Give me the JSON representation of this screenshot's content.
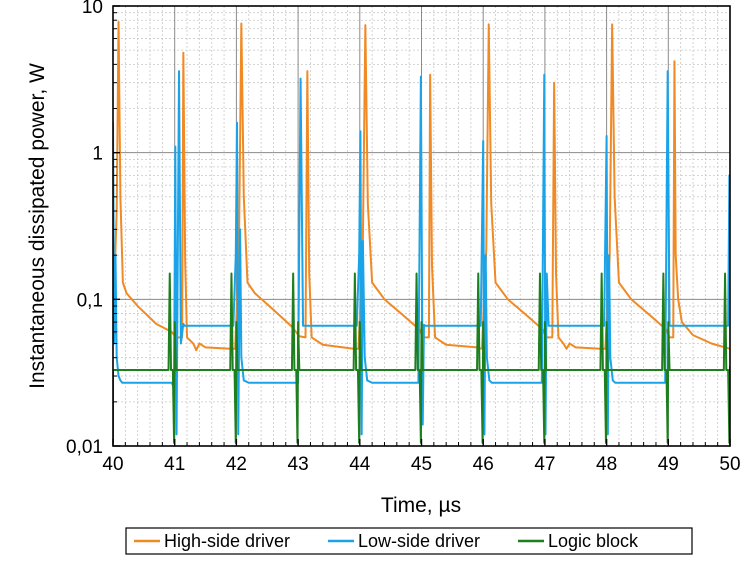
{
  "chart_data": {
    "type": "line",
    "title": "",
    "xlabel": "Time, µs",
    "ylabel": "Instantaneous dissipated power, W",
    "xlim": [
      40,
      50
    ],
    "ylim": [
      0.01,
      10
    ],
    "yscale": "log",
    "grid": true,
    "x_ticks": [
      40,
      41,
      42,
      43,
      44,
      45,
      46,
      47,
      48,
      49,
      50
    ],
    "x_tick_labels": [
      "40",
      "41",
      "42",
      "43",
      "44",
      "45",
      "46",
      "47",
      "48",
      "49",
      "50"
    ],
    "y_ticks": [
      0.01,
      0.1,
      1,
      10
    ],
    "y_tick_labels": [
      "0,01",
      "0,1",
      "1",
      "10"
    ],
    "legend_position": "bottom",
    "series": [
      {
        "name": "High-side driver",
        "color": "#F08A24",
        "x": [
          40.0,
          40.06,
          40.09,
          40.12,
          40.16,
          40.22,
          40.4,
          40.7,
          40.95,
          41.02,
          41.12,
          41.14,
          41.17,
          41.2,
          41.3,
          41.35,
          41.4,
          41.5,
          41.9,
          41.98,
          42.04,
          42.08,
          42.12,
          42.18,
          42.3,
          42.6,
          42.9,
          43.02,
          43.12,
          43.15,
          43.18,
          43.22,
          43.4,
          43.9,
          43.98,
          44.05,
          44.09,
          44.13,
          44.2,
          44.4,
          44.7,
          44.97,
          45.02,
          45.12,
          45.14,
          45.17,
          45.22,
          45.4,
          45.9,
          45.98,
          46.05,
          46.09,
          46.13,
          46.2,
          46.4,
          46.7,
          46.97,
          47.02,
          47.12,
          47.15,
          47.18,
          47.22,
          47.3,
          47.35,
          47.4,
          47.5,
          47.9,
          47.98,
          48.05,
          48.09,
          48.13,
          48.2,
          48.4,
          48.7,
          48.97,
          49.02,
          49.08,
          49.1,
          49.12,
          49.16,
          49.22,
          49.4,
          49.7,
          50.0
        ],
        "y": [
          0.065,
          0.4,
          7.8,
          0.5,
          0.13,
          0.11,
          0.09,
          0.068,
          0.06,
          0.055,
          0.055,
          4.8,
          0.18,
          0.055,
          0.05,
          0.045,
          0.05,
          0.047,
          0.046,
          0.046,
          0.2,
          7.6,
          0.5,
          0.13,
          0.11,
          0.085,
          0.065,
          0.056,
          0.055,
          3.6,
          0.15,
          0.055,
          0.049,
          0.046,
          0.046,
          0.25,
          7.4,
          0.45,
          0.13,
          0.1,
          0.078,
          0.062,
          0.055,
          0.055,
          3.4,
          0.17,
          0.055,
          0.049,
          0.047,
          0.046,
          0.22,
          7.5,
          0.45,
          0.13,
          0.1,
          0.078,
          0.062,
          0.055,
          0.055,
          3.0,
          0.15,
          0.055,
          0.05,
          0.046,
          0.05,
          0.047,
          0.046,
          0.046,
          0.2,
          7.5,
          0.5,
          0.13,
          0.1,
          0.078,
          0.062,
          0.055,
          0.055,
          4.2,
          0.2,
          0.1,
          0.07,
          0.057,
          0.05,
          0.046
        ]
      },
      {
        "name": "Low-side driver",
        "color": "#1AA3E8",
        "x": [
          39.98,
          40.0,
          40.02,
          40.04,
          40.06,
          40.09,
          40.12,
          40.15,
          40.2,
          40.95,
          40.99,
          41.01,
          41.03,
          41.05,
          41.07,
          41.1,
          41.14,
          41.16,
          41.2,
          41.25,
          41.95,
          41.99,
          42.01,
          42.03,
          42.06,
          42.08,
          42.12,
          42.2,
          42.3,
          43.0,
          43.04,
          43.08,
          43.1,
          43.12,
          43.16,
          43.2,
          43.95,
          43.99,
          44.01,
          44.03,
          44.05,
          44.08,
          44.12,
          44.2,
          44.3,
          44.95,
          44.99,
          45.02,
          45.04,
          45.06,
          45.08,
          45.12,
          45.2,
          45.96,
          46.0,
          46.02,
          46.04,
          46.06,
          46.1,
          46.14,
          46.2,
          46.3,
          46.95,
          46.99,
          47.01,
          47.03,
          47.06,
          47.08,
          47.12,
          47.2,
          47.96,
          48.0,
          48.02,
          48.04,
          48.06,
          48.1,
          48.14,
          48.2,
          48.3,
          48.95,
          48.99,
          49.02,
          49.04,
          49.06,
          49.08,
          49.12,
          49.2,
          49.97,
          49.99,
          50.0
        ],
        "y": [
          0.3,
          1.6,
          0.05,
          0.2,
          0.04,
          0.03,
          0.028,
          0.027,
          0.027,
          0.027,
          0.025,
          1.1,
          0.012,
          0.2,
          3.6,
          0.05,
          0.068,
          0.066,
          0.066,
          0.066,
          0.066,
          0.2,
          1.6,
          0.012,
          0.3,
          0.04,
          0.028,
          0.027,
          0.027,
          0.027,
          3.2,
          0.066,
          0.066,
          0.066,
          0.066,
          0.066,
          0.066,
          0.2,
          1.4,
          0.012,
          0.25,
          0.04,
          0.028,
          0.027,
          0.027,
          0.027,
          3.3,
          0.014,
          0.067,
          0.066,
          0.066,
          0.066,
          0.066,
          0.066,
          1.2,
          0.012,
          0.2,
          0.04,
          0.028,
          0.027,
          0.027,
          0.027,
          0.027,
          3.4,
          0.012,
          0.15,
          0.066,
          0.066,
          0.066,
          0.066,
          0.066,
          1.3,
          0.012,
          0.2,
          0.04,
          0.028,
          0.027,
          0.027,
          0.027,
          0.027,
          3.6,
          0.066,
          0.066,
          0.066,
          0.066,
          0.066,
          0.066,
          0.066,
          0.7,
          0.5
        ]
      },
      {
        "name": "Logic block",
        "color": "#1E7F1E",
        "x": [
          40.0,
          40.0,
          40.0,
          40.15,
          40.9,
          40.92,
          40.94,
          40.97,
          40.99,
          41.0,
          41.02,
          41.04,
          41.1,
          41.9,
          41.92,
          41.94,
          41.97,
          41.99,
          42.0,
          42.02,
          42.04,
          42.1,
          42.9,
          42.92,
          42.94,
          42.97,
          42.99,
          43.0,
          43.02,
          43.04,
          43.1,
          43.9,
          43.92,
          43.94,
          43.97,
          43.99,
          44.0,
          44.02,
          44.04,
          44.1,
          44.9,
          44.92,
          44.94,
          44.97,
          44.99,
          45.0,
          45.02,
          45.04,
          45.1,
          45.9,
          45.92,
          45.94,
          45.97,
          45.99,
          46.0,
          46.02,
          46.04,
          46.1,
          46.9,
          46.92,
          46.94,
          46.97,
          46.99,
          47.0,
          47.02,
          47.04,
          47.1,
          47.9,
          47.92,
          47.94,
          47.97,
          47.99,
          48.0,
          48.02,
          48.04,
          48.1,
          48.9,
          48.92,
          48.94,
          48.97,
          48.99,
          49.0,
          49.02,
          49.04,
          49.1,
          49.9,
          49.92,
          49.94,
          49.97,
          49.99,
          50.0
        ],
        "y": [
          0.0105,
          0.0105,
          0.033,
          0.033,
          0.033,
          0.15,
          0.033,
          0.033,
          0.0105,
          0.07,
          0.033,
          0.033,
          0.033,
          0.033,
          0.15,
          0.033,
          0.033,
          0.0105,
          0.07,
          0.033,
          0.033,
          0.033,
          0.033,
          0.15,
          0.033,
          0.033,
          0.0105,
          0.07,
          0.033,
          0.033,
          0.033,
          0.033,
          0.15,
          0.033,
          0.033,
          0.0105,
          0.07,
          0.033,
          0.033,
          0.033,
          0.033,
          0.15,
          0.033,
          0.033,
          0.0105,
          0.07,
          0.033,
          0.033,
          0.033,
          0.033,
          0.15,
          0.033,
          0.033,
          0.0105,
          0.07,
          0.033,
          0.033,
          0.033,
          0.033,
          0.15,
          0.033,
          0.033,
          0.0105,
          0.07,
          0.033,
          0.033,
          0.033,
          0.033,
          0.15,
          0.033,
          0.033,
          0.0105,
          0.07,
          0.033,
          0.033,
          0.033,
          0.033,
          0.15,
          0.033,
          0.033,
          0.0105,
          0.07,
          0.033,
          0.033,
          0.033,
          0.033,
          0.15,
          0.033,
          0.033,
          0.0105,
          0.035
        ]
      }
    ]
  }
}
